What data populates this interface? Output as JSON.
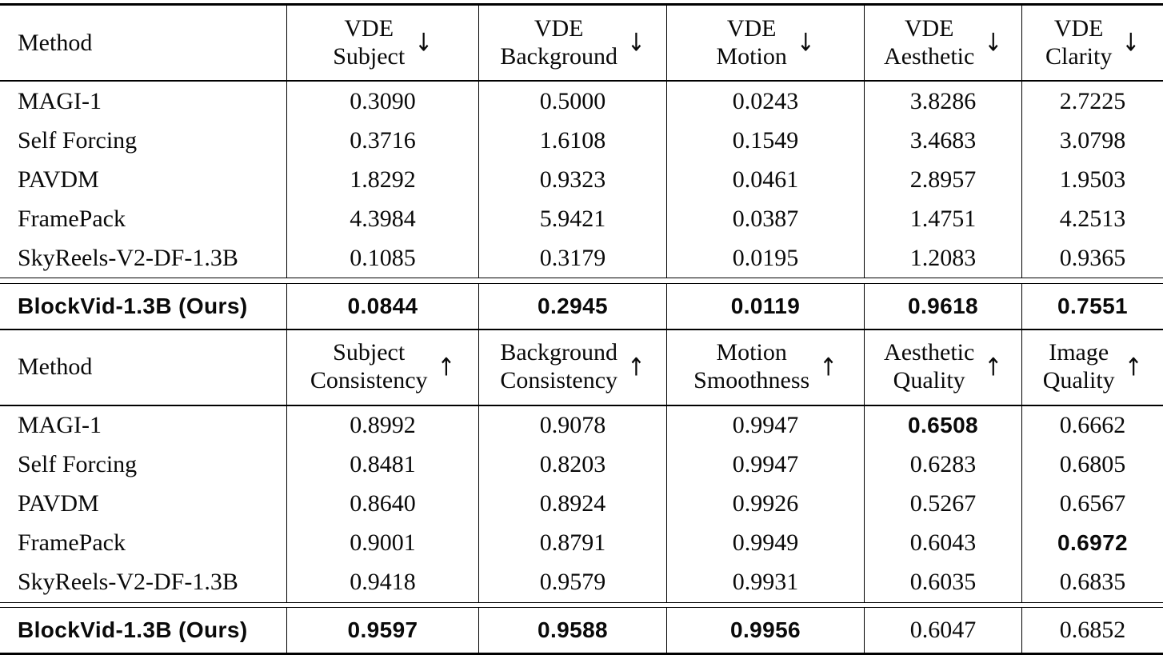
{
  "table1": {
    "method_header": "Method",
    "columns": [
      {
        "line1": "VDE",
        "line2": "Subject",
        "arrow": "↓"
      },
      {
        "line1": "VDE",
        "line2": "Background",
        "arrow": "↓"
      },
      {
        "line1": "VDE",
        "line2": "Motion",
        "arrow": "↓"
      },
      {
        "line1": "VDE",
        "line2": "Aesthetic",
        "arrow": "↓"
      },
      {
        "line1": "VDE",
        "line2": "Clarity",
        "arrow": "↓"
      }
    ],
    "rows": [
      {
        "method": "MAGI-1",
        "values": [
          "0.3090",
          "0.5000",
          "0.0243",
          "3.8286",
          "2.7225"
        ]
      },
      {
        "method": "Self Forcing",
        "values": [
          "0.3716",
          "1.6108",
          "0.1549",
          "3.4683",
          "3.0798"
        ]
      },
      {
        "method": "PAVDM",
        "values": [
          "1.8292",
          "0.9323",
          "0.0461",
          "2.8957",
          "1.9503"
        ]
      },
      {
        "method": "FramePack",
        "values": [
          "4.3984",
          "5.9421",
          "0.0387",
          "1.4751",
          "4.2513"
        ]
      },
      {
        "method": "SkyReels-V2-DF-1.3B",
        "values": [
          "0.1085",
          "0.3179",
          "0.0195",
          "1.2083",
          "0.9365"
        ]
      }
    ],
    "highlight_row": {
      "method": "BlockVid-1.3B (Ours)",
      "values": [
        "0.0844",
        "0.2945",
        "0.0119",
        "0.9618",
        "0.7551"
      ]
    }
  },
  "table2": {
    "method_header": "Method",
    "columns": [
      {
        "line1": "Subject",
        "line2": "Consistency",
        "arrow": "↑"
      },
      {
        "line1": "Background",
        "line2": "Consistency",
        "arrow": "↑"
      },
      {
        "line1": "Motion",
        "line2": "Smoothness",
        "arrow": "↑"
      },
      {
        "line1": "Aesthetic",
        "line2": "Quality",
        "arrow": "↑"
      },
      {
        "line1": "Image",
        "line2": "Quality",
        "arrow": "↑"
      }
    ],
    "rows": [
      {
        "method": "MAGI-1",
        "values": [
          "0.8992",
          "0.9078",
          "0.9947",
          "0.6508",
          "0.6662"
        ]
      },
      {
        "method": "Self Forcing",
        "values": [
          "0.8481",
          "0.8203",
          "0.9947",
          "0.6283",
          "0.6805"
        ]
      },
      {
        "method": "PAVDM",
        "values": [
          "0.8640",
          "0.8924",
          "0.9926",
          "0.5267",
          "0.6567"
        ]
      },
      {
        "method": "FramePack",
        "values": [
          "0.9001",
          "0.8791",
          "0.9949",
          "0.6043",
          "0.6972"
        ]
      },
      {
        "method": "SkyReels-V2-DF-1.3B",
        "values": [
          "0.9418",
          "0.9579",
          "0.9931",
          "0.6035",
          "0.6835"
        ]
      }
    ],
    "highlight_row": {
      "method": "BlockVid-1.3B (Ours)",
      "values": [
        "0.9597",
        "0.9588",
        "0.9956",
        "0.6047",
        "0.6852"
      ]
    }
  }
}
